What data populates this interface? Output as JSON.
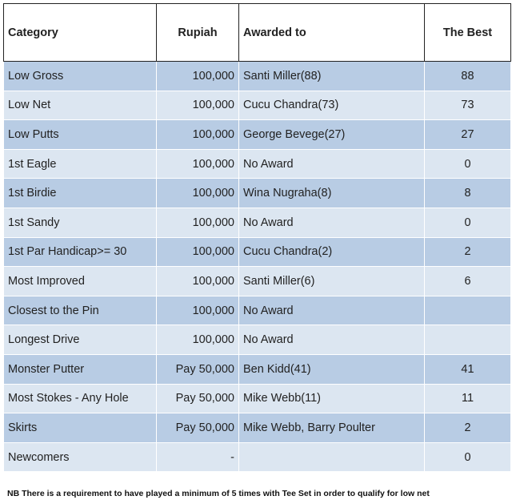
{
  "table": {
    "header": [
      "Category",
      "Rupiah",
      "Awarded to",
      "The Best"
    ],
    "rows": [
      [
        "Low Gross",
        "100,000",
        "Santi Miller(88)",
        "88"
      ],
      [
        "Low Net",
        "100,000",
        "Cucu Chandra(73)",
        "73"
      ],
      [
        "Low Putts",
        "100,000",
        "George Bevege(27)",
        "27"
      ],
      [
        "1st Eagle",
        "100,000",
        "No Award",
        "0"
      ],
      [
        "1st Birdie",
        "100,000",
        "Wina Nugraha(8)",
        "8"
      ],
      [
        "1st Sandy",
        "100,000",
        "No Award",
        "0"
      ],
      [
        "1st Par Handicap>= 30",
        "100,000",
        "Cucu Chandra(2)",
        "2"
      ],
      [
        "Most Improved",
        "100,000",
        "Santi Miller(6)",
        "6"
      ],
      [
        "Closest to the Pin",
        "100,000",
        "No Award",
        null
      ],
      [
        "Longest Drive",
        "100,000",
        "No Award",
        null
      ],
      [
        "Monster Putter",
        "Pay 50,000",
        "Ben Kidd(41)",
        "41"
      ],
      [
        "Most Stokes - Any Hole",
        "Pay 50,000",
        "Mike Webb(11)",
        "11"
      ],
      [
        "Skirts",
        "Pay 50,000",
        "Mike Webb, Barry Poulter",
        "2"
      ],
      [
        "Newcomers",
        "-",
        null,
        "0"
      ]
    ]
  },
  "note": "NB There is a requirement to have played a minimum of 5 times with Tee Set in order to qualify for low net"
}
